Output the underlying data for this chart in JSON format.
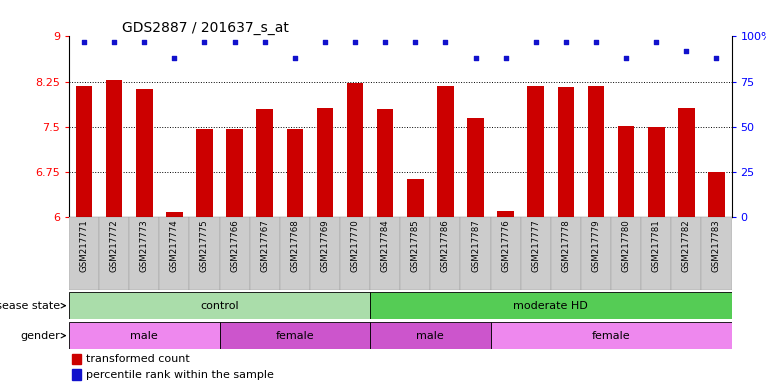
{
  "title": "GDS2887 / 201637_s_at",
  "samples": [
    "GSM217771",
    "GSM217772",
    "GSM217773",
    "GSM217774",
    "GSM217775",
    "GSM217766",
    "GSM217767",
    "GSM217768",
    "GSM217769",
    "GSM217770",
    "GSM217784",
    "GSM217785",
    "GSM217786",
    "GSM217787",
    "GSM217776",
    "GSM217777",
    "GSM217778",
    "GSM217779",
    "GSM217780",
    "GSM217781",
    "GSM217782",
    "GSM217783"
  ],
  "bar_values": [
    8.18,
    8.27,
    8.12,
    6.08,
    7.46,
    7.46,
    7.8,
    7.46,
    7.81,
    8.22,
    7.8,
    6.63,
    8.18,
    7.65,
    6.1,
    8.18,
    8.16,
    8.18,
    7.52,
    7.5,
    7.81,
    6.75
  ],
  "percentile_values": [
    97,
    97,
    97,
    88,
    97,
    97,
    97,
    88,
    97,
    97,
    97,
    97,
    97,
    88,
    88,
    97,
    97,
    97,
    88,
    97,
    92,
    88
  ],
  "ylim_left": [
    6.0,
    9.0
  ],
  "yticks_left": [
    6.0,
    6.75,
    7.5,
    8.25,
    9.0
  ],
  "ylim_right": [
    0,
    100
  ],
  "yticks_right": [
    0,
    25,
    50,
    75,
    100
  ],
  "bar_color": "#cc0000",
  "dot_color": "#1111cc",
  "disease_state_groups": [
    {
      "label": "control",
      "start": 0,
      "end": 9,
      "color": "#aaddaa"
    },
    {
      "label": "moderate HD",
      "start": 10,
      "end": 21,
      "color": "#55cc55"
    }
  ],
  "gender_groups": [
    {
      "label": "male",
      "start": 0,
      "end": 4,
      "color": "#ee88ee"
    },
    {
      "label": "female",
      "start": 5,
      "end": 9,
      "color": "#cc55cc"
    },
    {
      "label": "male",
      "start": 10,
      "end": 13,
      "color": "#cc55cc"
    },
    {
      "label": "female",
      "start": 14,
      "end": 21,
      "color": "#ee88ee"
    }
  ],
  "legend_bar_label": "transformed count",
  "legend_dot_label": "percentile rank within the sample",
  "disease_state_label": "disease state",
  "gender_label": "gender",
  "fig_width": 7.66,
  "fig_height": 3.84,
  "dpi": 100
}
